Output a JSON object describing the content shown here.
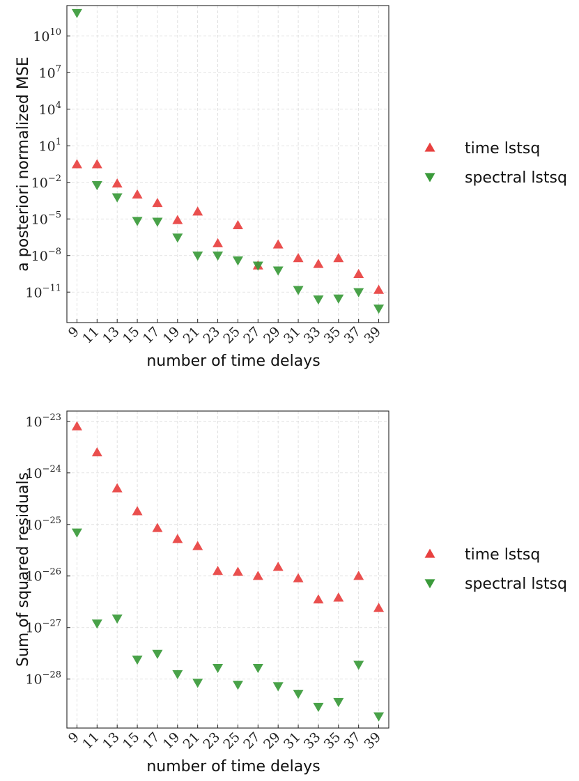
{
  "chart_data": [
    {
      "type": "scatter",
      "xlabel": "number of time delays",
      "ylabel": "a posteriori normalized MSE",
      "yscale": "log",
      "ylim_exponent": [
        -13.5,
        12.5
      ],
      "categories": [
        "9",
        "11",
        "13",
        "15",
        "17",
        "19",
        "21",
        "23",
        "25",
        "27",
        "29",
        "31",
        "33",
        "35",
        "37",
        "39"
      ],
      "ytick_exponents": [
        -11,
        -8,
        -5,
        -2,
        1,
        4,
        7,
        10
      ],
      "grid": true,
      "legend_position": "right",
      "series": [
        {
          "name": "time lstsq",
          "marker": "triangle-up",
          "color": "#e8403f",
          "values": [
            0.3,
            0.3,
            0.008,
            0.001,
            0.0002,
            8e-06,
            4e-05,
            1e-07,
            3e-06,
            1.5e-09,
            8e-08,
            6e-09,
            2e-09,
            6e-09,
            3e-10,
            1.5e-11
          ]
        },
        {
          "name": "spectral lstsq",
          "marker": "triangle-down",
          "color": "#3a9a3a",
          "values": [
            800000000000,
            0.006,
            0.0006,
            7e-06,
            6e-06,
            3e-07,
            1e-08,
            1e-08,
            4e-09,
            1.5e-09,
            6e-10,
            1.5e-11,
            2.5e-12,
            3e-12,
            1e-11,
            4.5e-13
          ]
        }
      ]
    },
    {
      "type": "scatter",
      "xlabel": "number of time delays",
      "ylabel": "Sum of squared residuals",
      "yscale": "log",
      "ylim_exponent": [
        -28.95,
        -22.8
      ],
      "categories": [
        "9",
        "11",
        "13",
        "15",
        "17",
        "19",
        "21",
        "23",
        "25",
        "27",
        "29",
        "31",
        "33",
        "35",
        "37",
        "39"
      ],
      "ytick_exponents": [
        -28,
        -27,
        -26,
        -25,
        -24,
        -23
      ],
      "grid": true,
      "legend_position": "right",
      "series": [
        {
          "name": "time lstsq",
          "marker": "triangle-up",
          "color": "#e8403f",
          "values": [
            8e-24,
            2.5e-24,
            5e-25,
            1.8e-25,
            8.5e-26,
            5.2e-26,
            3.8e-26,
            1.25e-26,
            1.2e-26,
            1e-26,
            1.5e-26,
            9e-27,
            3.5e-27,
            3.8e-27,
            1e-26,
            2.4e-27
          ]
        },
        {
          "name": "spectral lstsq",
          "marker": "triangle-down",
          "color": "#3a9a3a",
          "values": [
            7e-26,
            1.2e-27,
            1.5e-27,
            2.4e-28,
            3.1e-28,
            1.25e-28,
            8.5e-29,
            1.65e-28,
            7.8e-29,
            1.65e-28,
            7.3e-29,
            5.2e-29,
            2.9e-29,
            3.6e-29,
            1.9e-28,
            1.9e-29
          ]
        }
      ]
    }
  ]
}
